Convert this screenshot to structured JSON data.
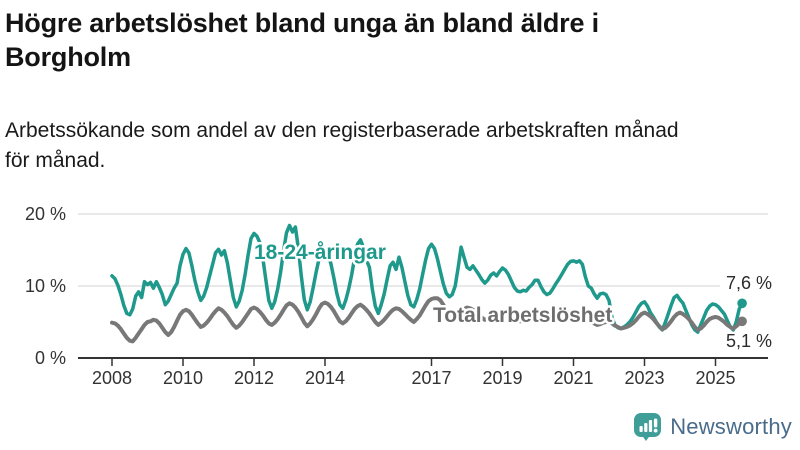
{
  "header": {
    "title": "Högre arbetslöshet bland unga än bland äldre i Borgholm",
    "title_lines": [
      "Högre arbetslöshet bland unga än bland äldre i",
      "Borgholm"
    ],
    "subtitle_lines": [
      "Arbetssökande som andel av den registerbaserade arbetskraften månad",
      "för månad."
    ]
  },
  "footer": {
    "brand": "Newsworthy",
    "brand_color": "#4a6c8b",
    "icon": "bar-chart-speech-bubble-icon",
    "icon_color": "#3f9e97"
  },
  "chart_data": {
    "type": "line",
    "unit": "%",
    "frequency": "monthly",
    "x_start": "2008-01",
    "x_end": "2025-10",
    "ylim": [
      0,
      21
    ],
    "grid": "horizontal",
    "colors": {
      "youth": "#1e998c",
      "total": "#787878",
      "gridline": "#dcdcdc",
      "axis": "#333333"
    },
    "y_ticks": [
      {
        "v": 0,
        "label": "0 %"
      },
      {
        "v": 10,
        "label": "10 %"
      },
      {
        "v": 20,
        "label": "20 %"
      }
    ],
    "x_ticks": [
      {
        "year": 2008,
        "label": "2008"
      },
      {
        "year": 2010,
        "label": "2010"
      },
      {
        "year": 2012,
        "label": "2012"
      },
      {
        "year": 2014,
        "label": "2014"
      },
      {
        "year": 2017,
        "label": "2017"
      },
      {
        "year": 2019,
        "label": "2019"
      },
      {
        "year": 2021,
        "label": "2021"
      },
      {
        "year": 2023,
        "label": "2023"
      },
      {
        "year": 2025,
        "label": "2025"
      }
    ],
    "series": [
      {
        "name": "18-24-åringar",
        "color": "#1e998c",
        "end_label": "7,6 %",
        "end_value": 7.6,
        "values": [
          11.4,
          11.0,
          10.1,
          8.8,
          7.3,
          6.2,
          6.0,
          6.8,
          8.6,
          9.2,
          8.4,
          10.6,
          10.2,
          10.5,
          9.7,
          10.6,
          9.8,
          8.8,
          7.4,
          7.9,
          8.8,
          9.7,
          10.4,
          12.8,
          14.4,
          15.2,
          14.6,
          12.8,
          10.8,
          9.2,
          8.0,
          8.6,
          9.8,
          11.4,
          13.0,
          14.6,
          15.1,
          14.3,
          14.9,
          13.2,
          10.8,
          8.4,
          7.1,
          7.9,
          9.4,
          11.6,
          14.3,
          16.6,
          17.3,
          16.9,
          16.0,
          13.8,
          10.9,
          8.0,
          6.9,
          7.8,
          9.6,
          11.9,
          14.9,
          17.4,
          18.4,
          17.5,
          18.2,
          15.2,
          11.4,
          8.1,
          6.7,
          7.8,
          9.8,
          11.9,
          13.8,
          14.7,
          15.0,
          14.4,
          13.1,
          11.1,
          9.0,
          7.4,
          6.9,
          8.0,
          9.6,
          11.5,
          13.9,
          15.8,
          16.4,
          15.3,
          13.6,
          12.6,
          9.6,
          7.2,
          6.2,
          7.4,
          8.9,
          10.9,
          12.8,
          13.3,
          12.3,
          14.0,
          12.6,
          10.6,
          8.7,
          7.4,
          7.1,
          8.1,
          9.6,
          11.6,
          13.6,
          15.2,
          15.8,
          15.2,
          13.8,
          12.0,
          10.3,
          9.0,
          8.5,
          8.8,
          10.0,
          12.5,
          15.4,
          14.0,
          12.6,
          12.3,
          12.8,
          12.2,
          11.6,
          10.9,
          10.4,
          10.8,
          11.5,
          11.8,
          11.4,
          12.0,
          12.5,
          12.2,
          11.6,
          10.7,
          9.8,
          9.3,
          9.2,
          9.4,
          9.3,
          9.8,
          10.2,
          10.8,
          10.8,
          9.9,
          9.2,
          8.8,
          9.0,
          9.6,
          10.3,
          10.9,
          11.6,
          12.3,
          13.0,
          13.4,
          13.5,
          13.3,
          13.5,
          13.0,
          11.3,
          10.0,
          9.7,
          8.9,
          8.3,
          8.9,
          9.0,
          8.8,
          8.0,
          5.6,
          4.6,
          4.2,
          4.1,
          4.3,
          4.6,
          5.0,
          5.6,
          6.3,
          7.1,
          7.6,
          7.8,
          7.2,
          6.3,
          5.7,
          5.0,
          4.3,
          3.9,
          4.9,
          6.1,
          7.3,
          8.4,
          8.7,
          8.1,
          7.6,
          6.6,
          5.6,
          4.6,
          3.9,
          3.6,
          4.6,
          5.6,
          6.6,
          7.2,
          7.5,
          7.4,
          7.1,
          6.6,
          6.1,
          5.2,
          4.3,
          3.9,
          5.0,
          6.8,
          7.6
        ]
      },
      {
        "name": "Total arbetslöshet",
        "color": "#787878",
        "end_label": "5,1 %",
        "end_value": 5.1,
        "values": [
          4.9,
          4.8,
          4.5,
          4.0,
          3.4,
          2.8,
          2.4,
          2.3,
          2.8,
          3.4,
          4.0,
          4.6,
          5.0,
          5.1,
          5.3,
          5.2,
          4.8,
          4.2,
          3.6,
          3.2,
          3.6,
          4.3,
          5.2,
          6.0,
          6.5,
          6.7,
          6.5,
          6.0,
          5.4,
          4.8,
          4.3,
          4.5,
          4.9,
          5.4,
          6.0,
          6.5,
          6.9,
          6.7,
          6.3,
          5.8,
          5.2,
          4.6,
          4.2,
          4.5,
          5.0,
          5.6,
          6.2,
          6.8,
          7.0,
          6.8,
          6.4,
          5.9,
          5.3,
          4.8,
          4.6,
          4.9,
          5.4,
          6.0,
          6.7,
          7.3,
          7.6,
          7.4,
          7.0,
          6.4,
          5.7,
          4.9,
          4.4,
          4.8,
          5.4,
          6.1,
          6.9,
          7.5,
          7.7,
          7.5,
          7.1,
          6.5,
          5.8,
          5.1,
          4.8,
          5.1,
          5.6,
          6.2,
          6.8,
          7.2,
          7.4,
          7.1,
          6.7,
          6.2,
          5.6,
          5.0,
          4.6,
          4.9,
          5.3,
          5.8,
          6.3,
          6.7,
          6.9,
          6.8,
          6.5,
          6.1,
          5.7,
          5.3,
          5.0,
          5.4,
          5.9,
          6.6,
          7.3,
          7.9,
          8.2,
          8.3,
          8.3,
          8.0,
          7.4,
          6.6,
          6.0,
          5.7,
          5.9,
          6.2,
          6.5,
          6.8,
          7.0,
          6.9,
          6.7,
          6.4,
          6.0,
          5.6,
          5.3,
          5.4,
          5.6,
          5.9,
          6.2,
          6.4,
          6.5,
          6.4,
          6.2,
          5.9,
          5.6,
          5.3,
          5.1,
          5.2,
          5.4,
          5.6,
          5.8,
          6.0,
          6.2,
          6.1,
          6.0,
          6.2,
          6.5,
          6.6,
          6.6,
          6.5,
          6.4,
          6.3,
          6.3,
          6.4,
          6.5,
          6.4,
          6.2,
          6.0,
          5.7,
          5.3,
          5.0,
          4.8,
          4.6,
          4.7,
          4.9,
          5.0,
          5.0,
          4.8,
          4.5,
          4.3,
          4.1,
          4.2,
          4.3,
          4.5,
          4.8,
          5.2,
          5.7,
          6.1,
          6.3,
          6.1,
          5.8,
          5.4,
          4.9,
          4.4,
          4.0,
          4.2,
          4.6,
          5.1,
          5.7,
          6.1,
          6.3,
          6.1,
          5.8,
          5.4,
          4.9,
          4.3,
          3.9,
          4.1,
          4.5,
          5.0,
          5.4,
          5.6,
          5.7,
          5.6,
          5.3,
          5.0,
          4.6,
          4.3,
          4.1,
          4.4,
          4.8,
          5.1
        ]
      }
    ]
  }
}
